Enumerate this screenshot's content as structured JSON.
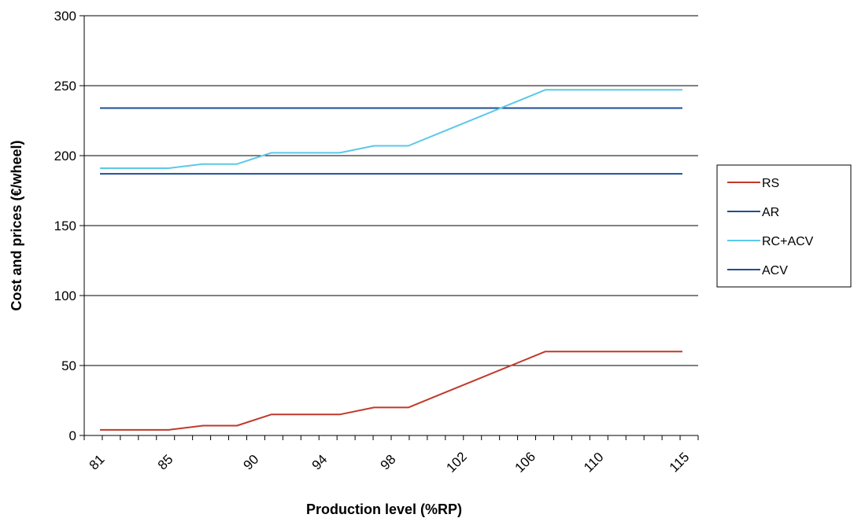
{
  "chart_data": {
    "type": "line",
    "xlabel": "Production level (%RP)",
    "ylabel": "Cost and prices (€/wheel)",
    "xlim": [
      81,
      115
    ],
    "ylim": [
      0,
      300
    ],
    "yticks": [
      "0",
      "50",
      "100",
      "150",
      "200",
      "250",
      "300"
    ],
    "xtick_values": [
      81,
      85,
      90,
      94,
      98,
      102,
      106,
      110,
      115
    ],
    "xticks": [
      "81",
      "85",
      "90",
      "94",
      "98",
      "102",
      "106",
      "110",
      "115"
    ],
    "grid": true,
    "legend_position": "right",
    "series": [
      {
        "name": "RS",
        "color": "#c0392b",
        "x": [
          81,
          83,
          85,
          87,
          89,
          91,
          93,
          95,
          97,
          99,
          101,
          103,
          105,
          107,
          109,
          111,
          113,
          115
        ],
        "y": [
          4,
          4,
          4,
          7,
          7,
          15,
          15,
          15,
          20,
          20,
          30,
          40,
          50,
          60,
          60,
          60,
          60,
          60
        ]
      },
      {
        "name": "AR",
        "color": "#1f4e96",
        "x": [
          81,
          115
        ],
        "y": [
          234,
          234
        ]
      },
      {
        "name": "RC+ACV",
        "color": "#5bc8e8",
        "x": [
          81,
          83,
          85,
          87,
          89,
          91,
          93,
          95,
          97,
          99,
          101,
          103,
          105,
          107,
          109,
          111,
          113,
          115
        ],
        "y": [
          191,
          191,
          191,
          194,
          194,
          202,
          202,
          202,
          207,
          207,
          217,
          227,
          237,
          247,
          247,
          247,
          247,
          247
        ]
      },
      {
        "name": "ACV",
        "color": "#1f4e96",
        "x": [
          81,
          115
        ],
        "y": [
          187,
          187
        ]
      }
    ]
  }
}
